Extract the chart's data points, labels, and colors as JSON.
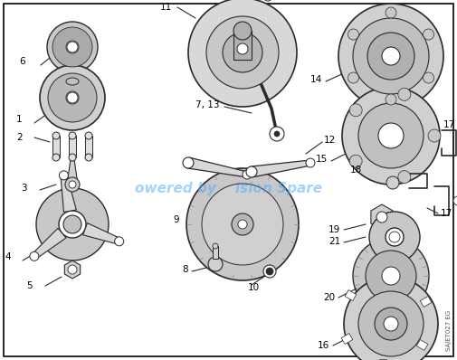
{
  "background_color": "#ffffff",
  "border_color": "#000000",
  "watermark_text": "owered by    ision Spare",
  "watermark_color": "#4da6ff",
  "watermark_alpha": 0.5,
  "watermark_fontsize": 11,
  "diagram_code": "SAJET027 EG",
  "fig_width": 5.05,
  "fig_height": 3.98,
  "dpi": 100
}
